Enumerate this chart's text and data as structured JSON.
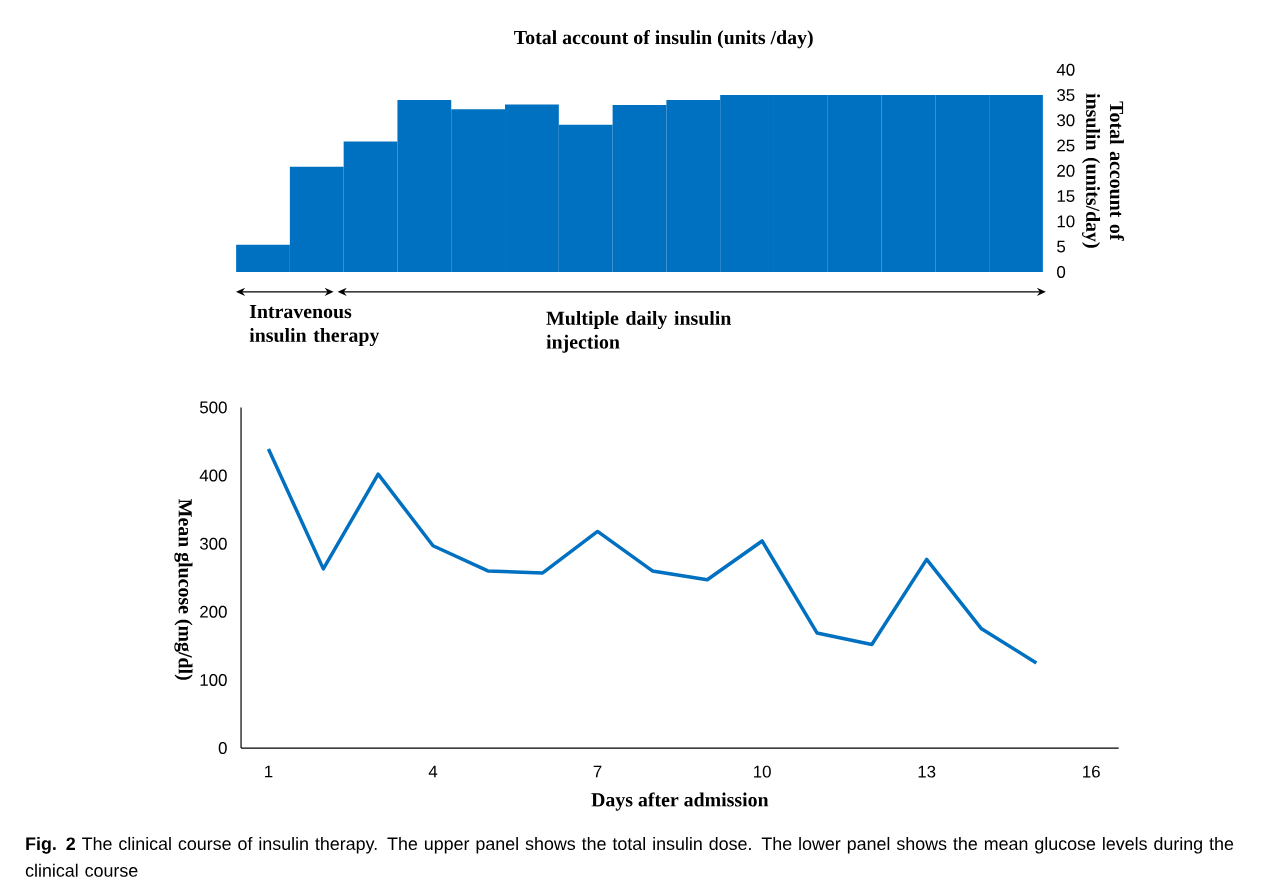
{
  "chart_data": [
    {
      "type": "bar",
      "title": "Total account of insulin (units /day)",
      "ylabel": "Total account of insulin (units/day)",
      "categories": [
        null,
        null,
        null,
        null,
        null,
        null,
        null,
        null,
        null,
        null,
        null,
        null,
        null,
        null,
        null
      ],
      "series": [
        {
          "color": "#0070c0",
          "values": [
            5.4,
            20.8,
            25.8,
            34,
            32.2,
            33.1,
            29.1,
            33,
            34,
            35,
            35,
            35,
            35,
            35,
            35
          ]
        }
      ],
      "ylim": [
        0,
        40
      ],
      "yticks": [
        0,
        5,
        10,
        15,
        20,
        25,
        30,
        35,
        40
      ],
      "annotations": [
        "Intravenous insulin therapy",
        "Multiple daily insulin injection"
      ]
    },
    {
      "type": "line",
      "xlabel": "Days after admission",
      "ylabel": "Mean glucose (mg/dl)",
      "x": [
        1,
        2,
        3,
        4,
        5,
        6,
        7,
        8,
        9,
        10,
        11,
        12,
        13,
        14,
        15
      ],
      "series": [
        {
          "color": "#0070c0",
          "values": [
            439,
            263,
            402,
            297,
            260,
            257,
            318,
            260,
            247,
            304,
            169,
            152,
            277,
            175,
            125
          ]
        }
      ],
      "xlim": [
        0.5,
        16.5
      ],
      "xticks": [
        1,
        4,
        7,
        10,
        13,
        16
      ],
      "ylim": [
        0,
        500
      ],
      "yticks": [
        0,
        100,
        200,
        300,
        400,
        500
      ],
      "annotations": [
        "**Fig. 2** The clinical course of insulin therapy. The upper panel shows the total insulin dose. The lower panel shows the mean glucose levels during the clinical course"
      ]
    }
  ]
}
